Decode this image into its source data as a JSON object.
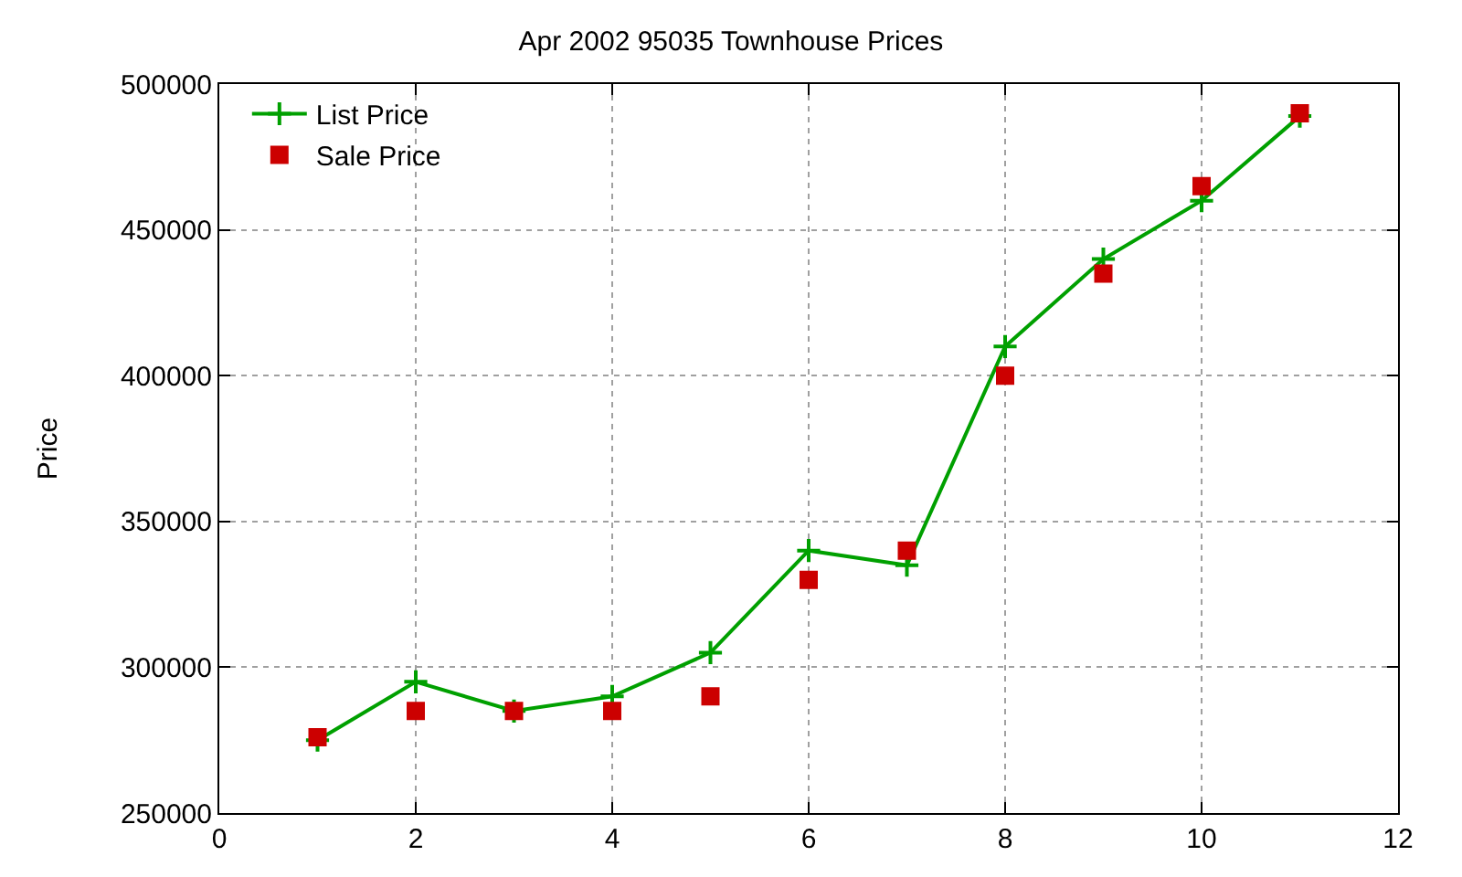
{
  "chart_data": {
    "type": "line",
    "title": "Apr 2002 95035 Townhouse Prices",
    "ylabel": "Price",
    "x": [
      1,
      2,
      3,
      4,
      5,
      6,
      7,
      8,
      9,
      10,
      11
    ],
    "series": [
      {
        "name": "List Price",
        "color": "#00a000",
        "marker": "cross",
        "values": [
          275000,
          295000,
          285000,
          290000,
          305000,
          340000,
          335000,
          410000,
          440000,
          460000,
          489000
        ]
      },
      {
        "name": "Sale Price",
        "color": "#cc0000",
        "type": "scatter",
        "marker": "square",
        "values": [
          276000,
          285000,
          285000,
          285000,
          290000,
          330000,
          340000,
          400000,
          435000,
          465000,
          490000
        ]
      }
    ],
    "xlim": [
      0,
      12
    ],
    "xticks": [
      0,
      2,
      4,
      6,
      8,
      10,
      12
    ],
    "ylim": [
      250000,
      500000
    ],
    "yticks": [
      250000,
      300000,
      350000,
      400000,
      450000,
      500000
    ],
    "grid": true,
    "legend": "top left"
  }
}
